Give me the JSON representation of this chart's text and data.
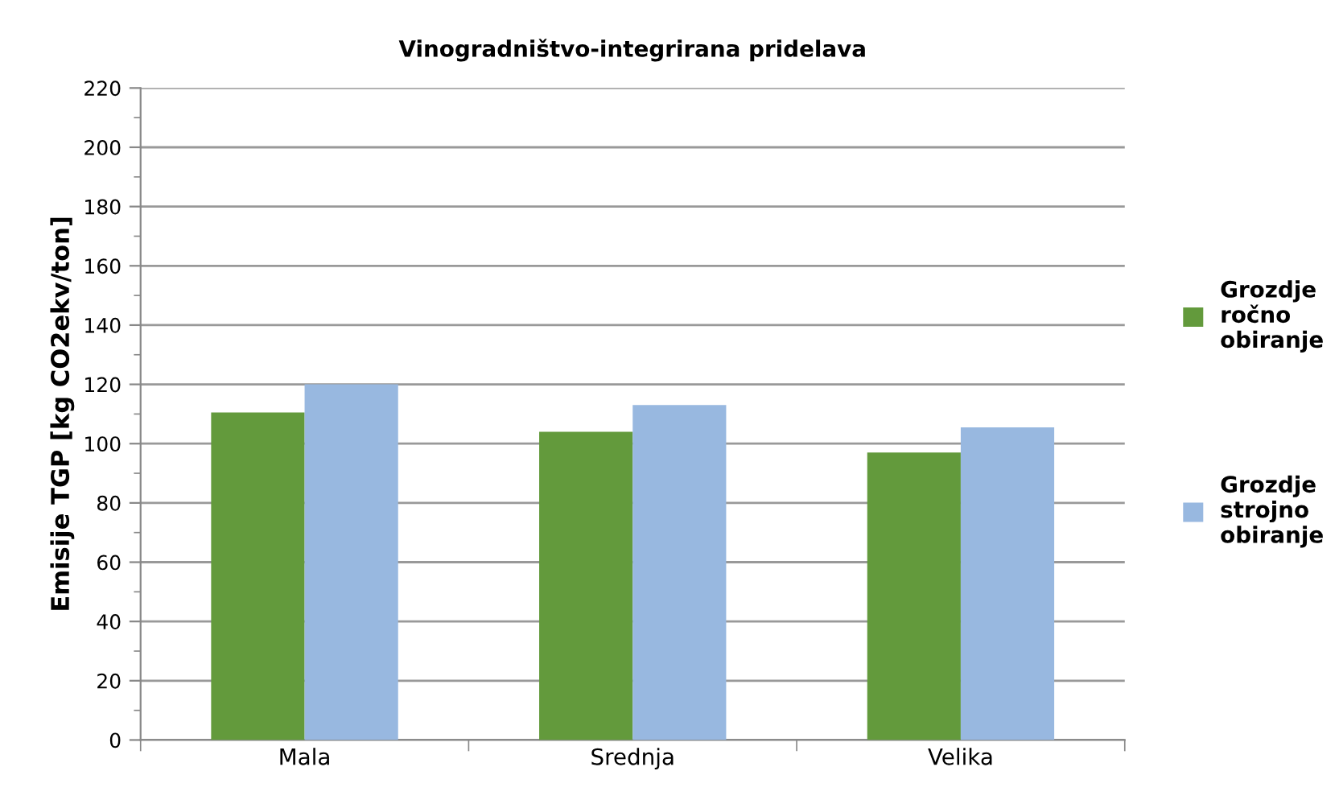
{
  "chart_data": {
    "type": "bar",
    "title": "Vinogradništvo-integrirana pridelava",
    "ylabel": "Emisije TGP [kg CO2ekv/ton]",
    "categories": [
      "Mala",
      "Srednja",
      "Velika"
    ],
    "series": [
      {
        "name": "Grozdje\nročno\nobiranje",
        "color": "#639a3c",
        "values": [
          110.5,
          104,
          97
        ]
      },
      {
        "name": "Grozdje\nstrojno\nobiranje",
        "color": "#98b8e0",
        "values": [
          120,
          113,
          105.5
        ]
      }
    ],
    "ylim": [
      0,
      220
    ],
    "yticks": [
      0,
      20,
      40,
      60,
      80,
      100,
      120,
      140,
      160,
      180,
      200,
      220
    ],
    "grid": "y",
    "legend": "right"
  }
}
